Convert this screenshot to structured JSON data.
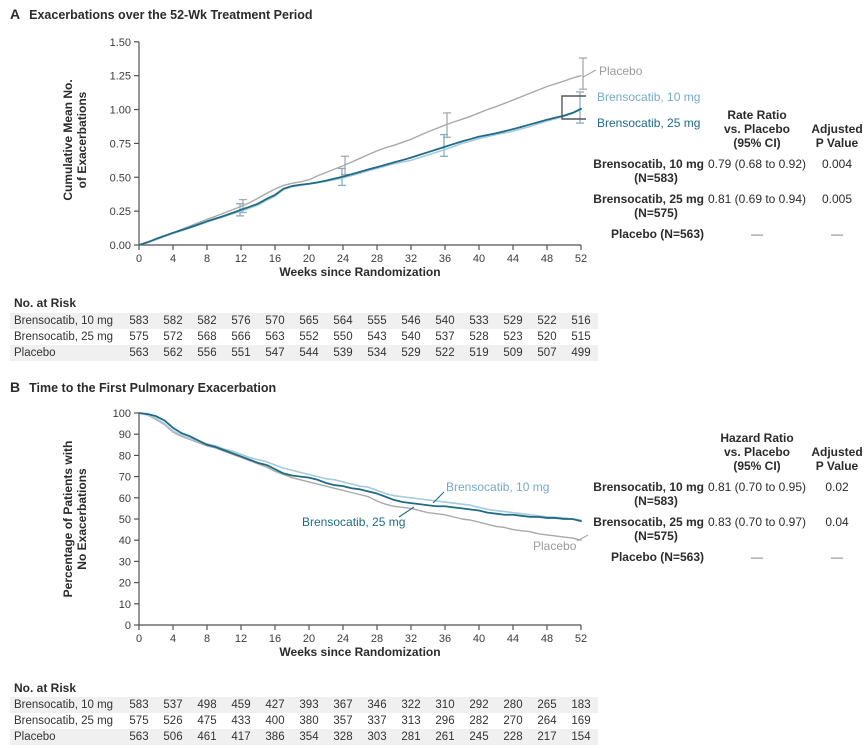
{
  "figure": {
    "panels": [
      {
        "letter": "A",
        "title": "Exacerbations over the 52-Wk Treatment Period"
      },
      {
        "letter": "B",
        "title": "Time to the First Pulmonary Exacerbation"
      }
    ]
  },
  "colors": {
    "text": "#2b2b2b",
    "axis": "#515254",
    "tick_text": "#3c3c3c",
    "placebo_line": "#a9a9a9",
    "placebo_label": "#9b9b9b",
    "bren10_line": "#a7cadc",
    "bren10_label": "#74aac8",
    "bren25_line": "#1f6b86",
    "bren25_label": "#1f6b86",
    "bren_bar": "#84aec5",
    "bracket": "#56575b",
    "stripe": "#f0f0f1"
  },
  "chart_data": [
    {
      "type": "line",
      "panel": "A",
      "title": "Exacerbations over the 52-Wk Treatment Period",
      "xlabel": "Weeks since Randomization",
      "ylabel": "Cumulative Mean No. of Exacerbations",
      "ylabel_lines": [
        "Cumulative Mean No.",
        "of Exacerbations"
      ],
      "x_unit": "week",
      "x_step": 1,
      "xlim": [
        0,
        52
      ],
      "ylim": [
        0,
        1.5
      ],
      "xticks": [
        0,
        4,
        8,
        12,
        16,
        20,
        24,
        28,
        32,
        36,
        40,
        44,
        48,
        52
      ],
      "ytick_values": [
        0,
        0.25,
        0.5,
        0.75,
        1,
        1.25,
        1.5
      ],
      "ytick_labels": [
        "0.00",
        "0.25",
        "0.50",
        "0.75",
        "1.00",
        "1.25",
        "1.50"
      ],
      "series": [
        {
          "name": "Placebo",
          "color_key": "placebo_line",
          "values": [
            0,
            0.02,
            0.045,
            0.068,
            0.09,
            0.115,
            0.14,
            0.165,
            0.19,
            0.212,
            0.236,
            0.26,
            0.285,
            0.312,
            0.345,
            0.38,
            0.413,
            0.44,
            0.455,
            0.466,
            0.482,
            0.51,
            0.535,
            0.56,
            0.585,
            0.612,
            0.64,
            0.668,
            0.695,
            0.718,
            0.736,
            0.758,
            0.78,
            0.808,
            0.835,
            0.86,
            0.885,
            0.908,
            0.928,
            0.95,
            0.975,
            1.0,
            1.022,
            1.045,
            1.07,
            1.095,
            1.12,
            1.145,
            1.17,
            1.19,
            1.21,
            1.232,
            1.25
          ]
        },
        {
          "name": "Brensocatib, 10 mg",
          "color_key": "bren10_line",
          "values": [
            0,
            0.018,
            0.04,
            0.062,
            0.085,
            0.106,
            0.126,
            0.148,
            0.17,
            0.19,
            0.21,
            0.23,
            0.25,
            0.272,
            0.295,
            0.33,
            0.36,
            0.41,
            0.43,
            0.44,
            0.45,
            0.46,
            0.47,
            0.482,
            0.495,
            0.512,
            0.53,
            0.548,
            0.565,
            0.582,
            0.6,
            0.612,
            0.625,
            0.645,
            0.665,
            0.685,
            0.705,
            0.727,
            0.75,
            0.767,
            0.785,
            0.8,
            0.815,
            0.827,
            0.84,
            0.857,
            0.875,
            0.895,
            0.915,
            0.932,
            0.95,
            0.972,
            1.0
          ]
        },
        {
          "name": "Brensocatib, 25 mg",
          "color_key": "bren25_line",
          "values": [
            0,
            0.02,
            0.045,
            0.068,
            0.09,
            0.11,
            0.13,
            0.152,
            0.175,
            0.195,
            0.215,
            0.237,
            0.26,
            0.282,
            0.305,
            0.34,
            0.37,
            0.415,
            0.435,
            0.445,
            0.452,
            0.462,
            0.475,
            0.49,
            0.505,
            0.522,
            0.54,
            0.558,
            0.575,
            0.592,
            0.61,
            0.627,
            0.645,
            0.665,
            0.685,
            0.705,
            0.725,
            0.745,
            0.765,
            0.782,
            0.8,
            0.812,
            0.825,
            0.84,
            0.855,
            0.872,
            0.89,
            0.907,
            0.925,
            0.94,
            0.955,
            0.975,
            1.005
          ]
        }
      ],
      "error_bars": [
        {
          "name": "Placebo",
          "color_key": "placebo_line",
          "points": [
            {
              "x": 12,
              "lo": 0.24,
              "hi": 0.335
            },
            {
              "x": 24,
              "lo": 0.52,
              "hi": 0.655
            },
            {
              "x": 36,
              "lo": 0.795,
              "hi": 0.975
            },
            {
              "x": 52,
              "lo": 1.15,
              "hi": 1.38
            }
          ]
        },
        {
          "name": "Brensocatib",
          "color_key": "bren_bar",
          "points": [
            {
              "x": 12,
              "lo": 0.215,
              "hi": 0.305
            },
            {
              "x": 24,
              "lo": 0.44,
              "hi": 0.565
            },
            {
              "x": 36,
              "lo": 0.655,
              "hi": 0.815
            },
            {
              "x": 52,
              "lo": 0.9,
              "hi": 1.13
            }
          ]
        }
      ],
      "curve_labels": [
        {
          "text": "Placebo",
          "color_key": "placebo_label"
        },
        {
          "text": "Brensocatib, 10 mg",
          "color_key": "bren10_label"
        },
        {
          "text": "Brensocatib, 25 mg",
          "color_key": "bren25_label"
        }
      ],
      "stats_table": {
        "header_col1": [
          "Rate Ratio",
          "vs. Placebo",
          "(95% CI)"
        ],
        "header_col2": [
          "Adjusted",
          "P Value"
        ],
        "rows": [
          {
            "name": "Brensocatib, 10 mg",
            "n": "(N=583)",
            "ci": "0.79 (0.68 to 0.92)",
            "p": "0.004"
          },
          {
            "name": "Brensocatib, 25 mg",
            "n": "(N=575)",
            "ci": "0.81 (0.69 to 0.94)",
            "p": "0.005"
          },
          {
            "name": "Placebo (N=563)",
            "n": "",
            "ci": "—",
            "p": "—"
          }
        ]
      },
      "risk_table": {
        "label": "No. at Risk",
        "rows": [
          {
            "name": "Brensocatib, 10 mg",
            "values": [
              583,
              582,
              582,
              576,
              570,
              565,
              564,
              555,
              546,
              540,
              533,
              529,
              522,
              516
            ]
          },
          {
            "name": "Brensocatib, 25 mg",
            "values": [
              575,
              572,
              568,
              566,
              563,
              552,
              550,
              543,
              540,
              537,
              528,
              523,
              520,
              515
            ]
          },
          {
            "name": "Placebo",
            "values": [
              563,
              562,
              556,
              551,
              547,
              544,
              539,
              534,
              529,
              522,
              519,
              509,
              507,
              499
            ]
          }
        ]
      }
    },
    {
      "type": "line",
      "panel": "B",
      "title": "Time to the First Pulmonary Exacerbation",
      "xlabel": "Weeks since Randomization",
      "ylabel": "Percentage of Patients with No Exacerbations",
      "ylabel_lines": [
        "Percentage of Patients with",
        "No Exacerbations"
      ],
      "x_unit": "week",
      "x_step": 1,
      "xlim": [
        0,
        52
      ],
      "ylim": [
        0,
        100
      ],
      "xticks": [
        0,
        4,
        8,
        12,
        16,
        20,
        24,
        28,
        32,
        36,
        40,
        44,
        48,
        52
      ],
      "ytick_values": [
        0,
        10,
        20,
        30,
        40,
        50,
        60,
        70,
        80,
        90,
        100
      ],
      "ytick_labels": [
        "0",
        "10",
        "20",
        "30",
        "40",
        "50",
        "60",
        "70",
        "80",
        "90",
        "100"
      ],
      "series": [
        {
          "name": "Placebo",
          "color_key": "placebo_line",
          "values": [
            100,
            99,
            97,
            94.5,
            91,
            89,
            87.5,
            86,
            84.5,
            83.5,
            82,
            80.5,
            79,
            77.5,
            76,
            74.5,
            72.5,
            71,
            69.5,
            68.5,
            67.5,
            66.5,
            65.5,
            64.5,
            63.5,
            62.5,
            61.5,
            60.5,
            58.5,
            57,
            56,
            55.5,
            55,
            54,
            53,
            52.5,
            52,
            51,
            50,
            49.5,
            48.5,
            47.5,
            46.5,
            46,
            45,
            44.5,
            44,
            43,
            42.5,
            42,
            41.5,
            41,
            40
          ]
        },
        {
          "name": "Brensocatib, 10 mg",
          "color_key": "bren10_line",
          "values": [
            100,
            99,
            97.5,
            95,
            91.5,
            89.5,
            88,
            86.5,
            85.5,
            84.5,
            83,
            82,
            80.5,
            79,
            78,
            77,
            75.5,
            74,
            73,
            72,
            71,
            70,
            69,
            68.5,
            67.5,
            66.5,
            65.5,
            65,
            63.5,
            62,
            61,
            60.5,
            60,
            59.5,
            59,
            58.5,
            58,
            57.5,
            57,
            56.5,
            55.5,
            54.5,
            54,
            53.5,
            53,
            52.5,
            52,
            51.5,
            51,
            50.8,
            50.5,
            50,
            49.5
          ]
        },
        {
          "name": "Brensocatib, 25 mg",
          "color_key": "bren25_line",
          "values": [
            100,
            99.5,
            98.5,
            96.5,
            93,
            90.5,
            89,
            87,
            85,
            84,
            82.5,
            81,
            79.5,
            78,
            76.5,
            75.5,
            73.5,
            71.5,
            70.5,
            70,
            69.5,
            68.5,
            67,
            66,
            65.5,
            64.5,
            64,
            63,
            62,
            60.5,
            59,
            58,
            57.5,
            57,
            56.5,
            56,
            56,
            55.5,
            55,
            54.5,
            54,
            53,
            52.5,
            52,
            52,
            51.5,
            51,
            51,
            50.5,
            50.5,
            50,
            50,
            49
          ]
        }
      ],
      "error_bars": [],
      "curve_labels": [
        {
          "text": "Brensocatib, 10 mg",
          "color_key": "bren10_label"
        },
        {
          "text": "Brensocatib, 25 mg",
          "color_key": "bren25_label"
        },
        {
          "text": "Placebo",
          "color_key": "placebo_label"
        }
      ],
      "stats_table": {
        "header_col1": [
          "Hazard Ratio",
          "vs. Placebo",
          "(95% CI)"
        ],
        "header_col2": [
          "Adjusted",
          "P Value"
        ],
        "rows": [
          {
            "name": "Brensocatib, 10 mg",
            "n": "(N=583)",
            "ci": "0.81 (0.70 to 0.95)",
            "p": "0.02"
          },
          {
            "name": "Brensocatib, 25 mg",
            "n": "(N=575)",
            "ci": "0.83 (0.70 to 0.97)",
            "p": "0.04"
          },
          {
            "name": "Placebo (N=563)",
            "n": "",
            "ci": "—",
            "p": "—"
          }
        ]
      },
      "risk_table": {
        "label": "No. at Risk",
        "rows": [
          {
            "name": "Brensocatib, 10 mg",
            "values": [
              583,
              537,
              498,
              459,
              427,
              393,
              367,
              346,
              322,
              310,
              292,
              280,
              265,
              183
            ]
          },
          {
            "name": "Brensocatib, 25 mg",
            "values": [
              575,
              526,
              475,
              433,
              400,
              380,
              357,
              337,
              313,
              296,
              282,
              270,
              264,
              169
            ]
          },
          {
            "name": "Placebo",
            "values": [
              563,
              506,
              461,
              417,
              386,
              354,
              328,
              303,
              281,
              261,
              245,
              228,
              217,
              154
            ]
          }
        ]
      }
    }
  ]
}
